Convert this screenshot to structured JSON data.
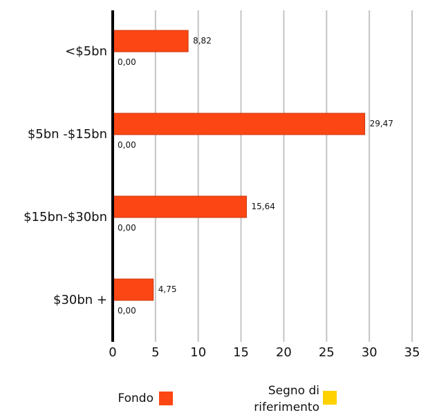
{
  "chart_data": {
    "type": "bar",
    "orientation": "horizontal",
    "categories": [
      "<$5bn",
      "$5bn -$15bn",
      "$15bn-$30bn",
      "$30bn +"
    ],
    "series": [
      {
        "name": "Fondo",
        "color": "#fc4614",
        "values": [
          8.82,
          29.47,
          15.64,
          4.75
        ],
        "value_labels": [
          "8,82",
          "29,47",
          "15,64",
          "4,75"
        ]
      },
      {
        "name": "Segno di riferimento",
        "color": "#ffd100",
        "values": [
          0,
          0,
          0,
          0
        ],
        "value_labels": [
          "0,00",
          "0,00",
          "0,00",
          "0,00"
        ]
      }
    ],
    "xlim": [
      0,
      35
    ],
    "xticks": [
      0,
      5,
      10,
      15,
      20,
      25,
      30,
      35
    ],
    "grid": true,
    "legend": "bottom"
  }
}
